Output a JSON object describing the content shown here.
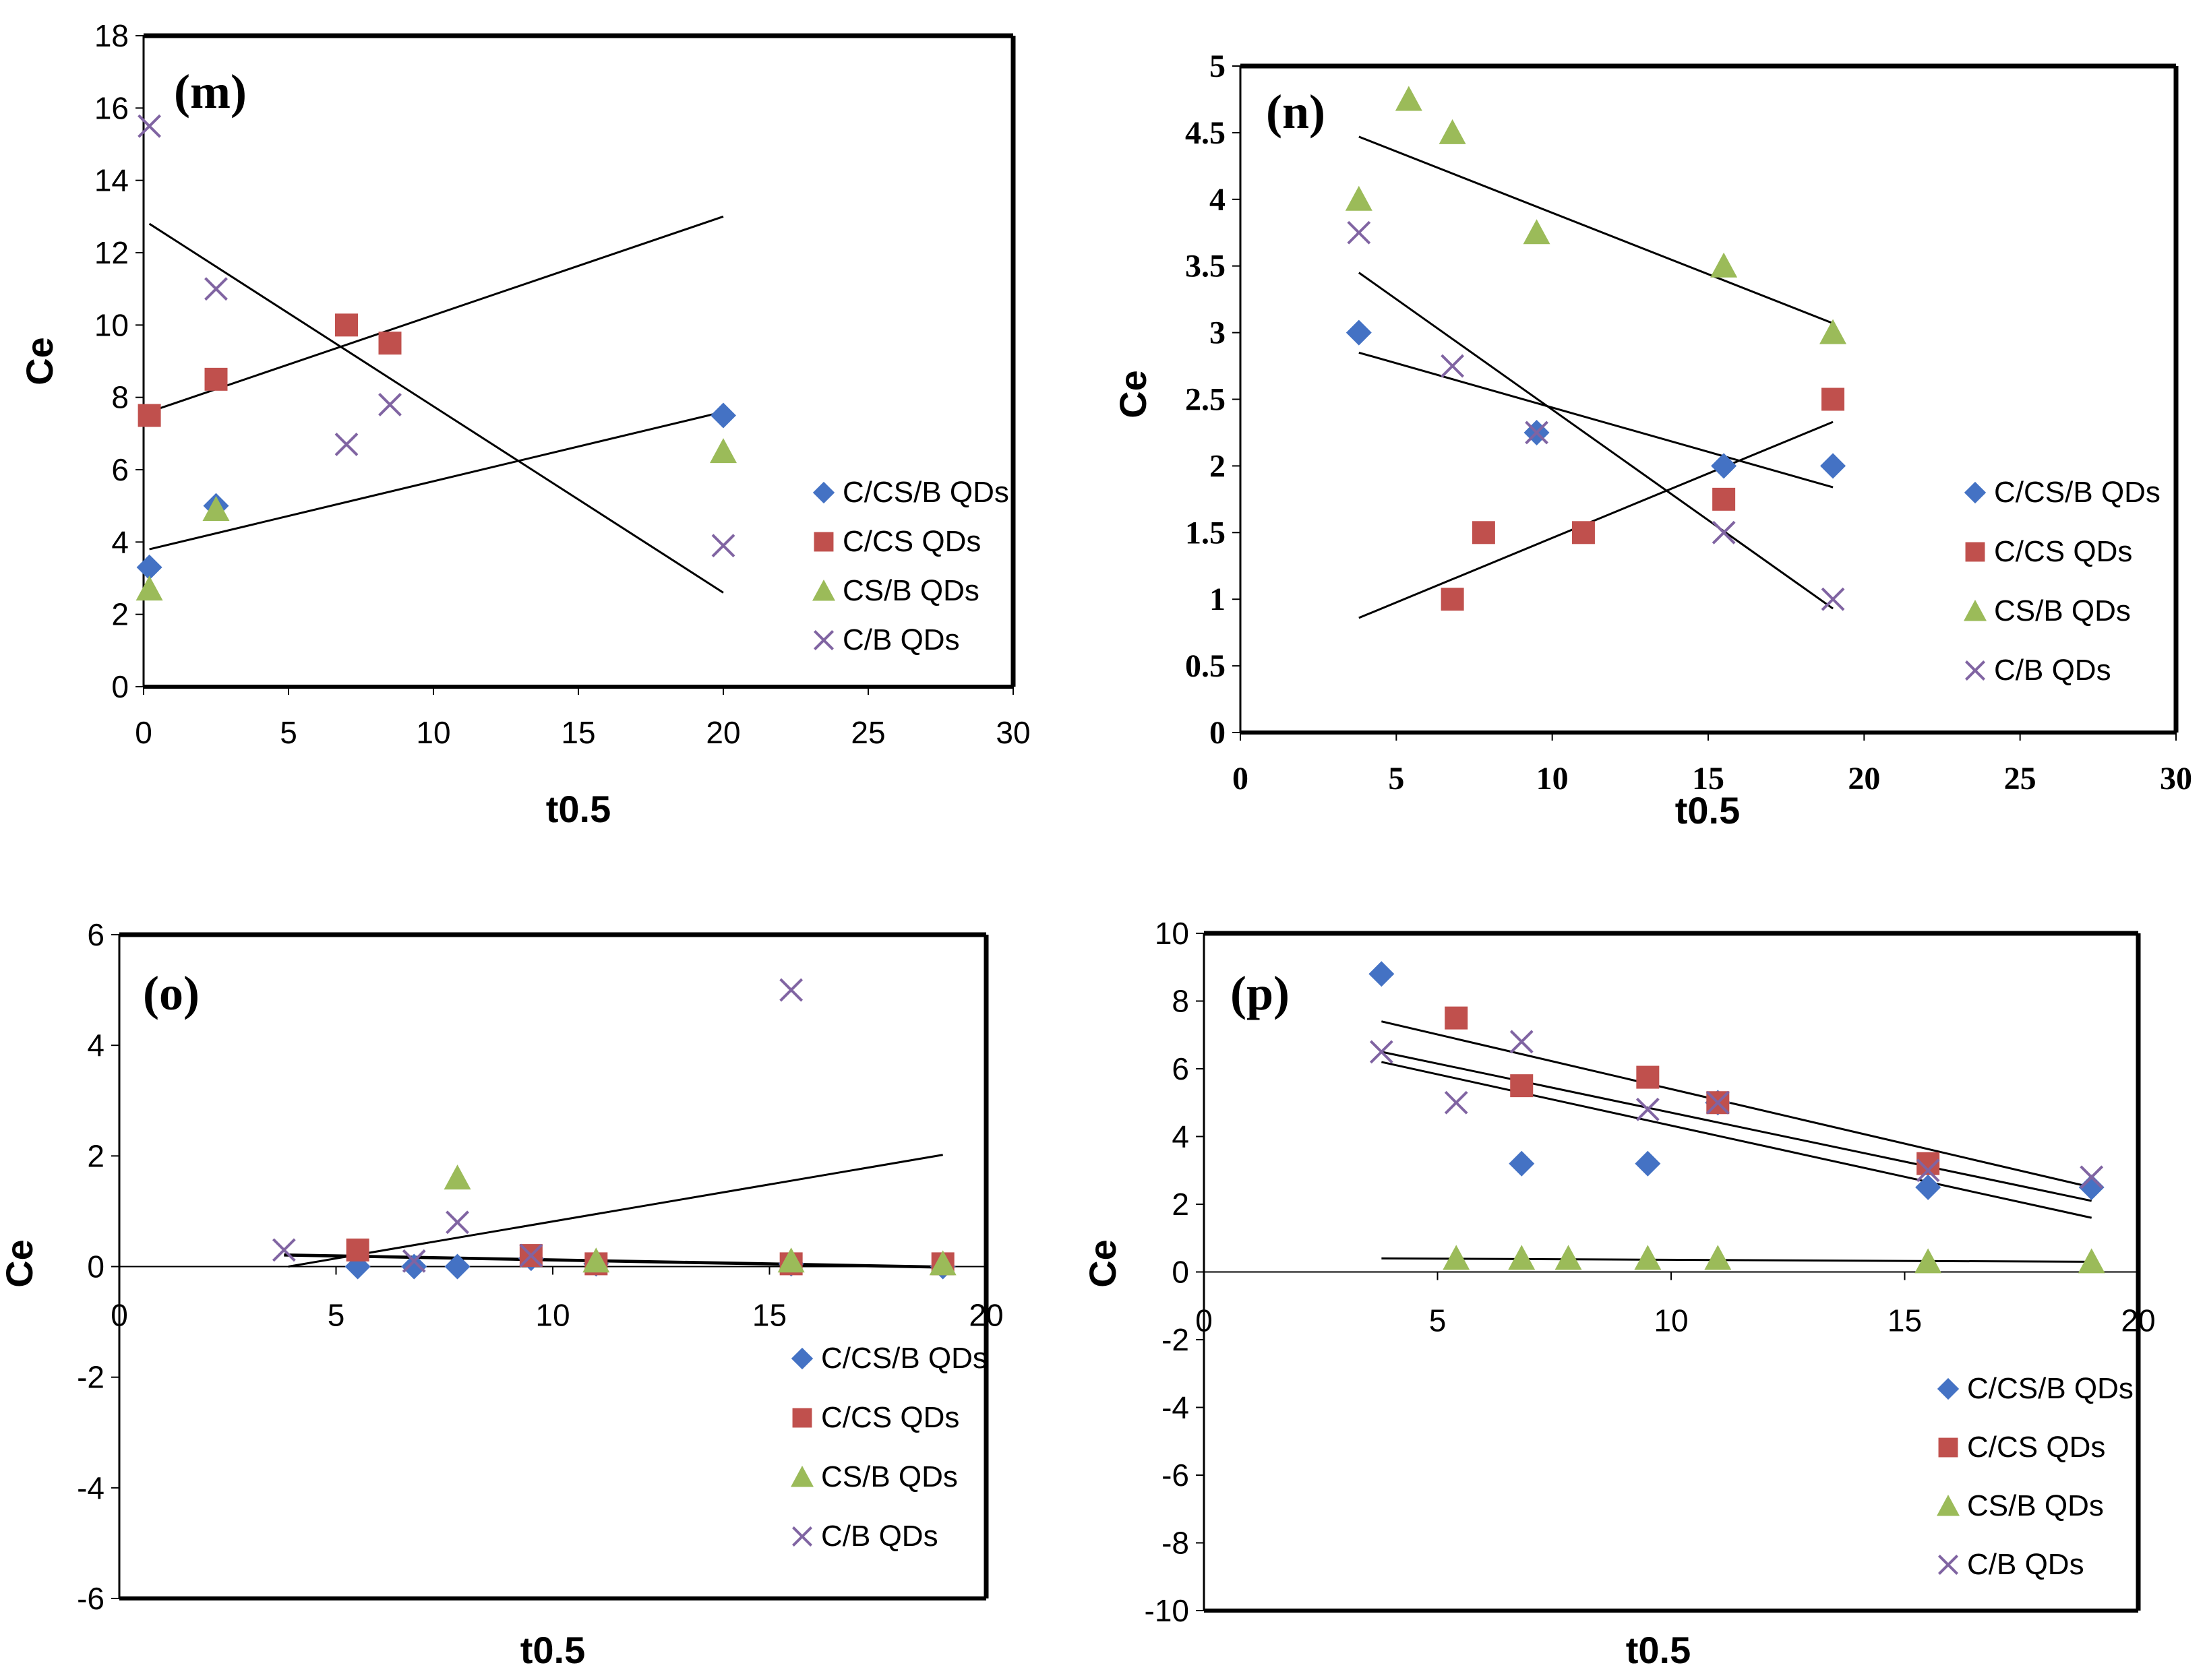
{
  "colors": {
    "C/CS/B QDs": "#4472C4",
    "C/CS QDs": "#C0504D",
    "CS/B QDs": "#9BBB59",
    "C/B QDs": "#8064A2"
  },
  "chart_data": [
    {
      "type": "scatter",
      "panel_label": "(m)",
      "xlabel": "t0.5",
      "ylabel": "Ce",
      "xlim": [
        0,
        30
      ],
      "ylim": [
        0,
        18
      ],
      "xticks": [
        "0",
        "5",
        "10",
        "15",
        "20",
        "25",
        "30"
      ],
      "yticks": [
        "0",
        "2",
        "4",
        "6",
        "8",
        "10",
        "12",
        "14",
        "16",
        "18"
      ],
      "legend": [
        "C/CS/B QDs",
        "C/CS QDs",
        "CS/B QDs",
        "C/B QDs"
      ],
      "series": [
        {
          "name": "C/CS/B QDs",
          "marker": "diamond",
          "points": [
            [
              0.2,
              3.3
            ],
            [
              2.5,
              5.0
            ],
            [
              20,
              7.5
            ]
          ]
        },
        {
          "name": "C/CS QDs",
          "marker": "square",
          "points": [
            [
              0.2,
              7.5
            ],
            [
              2.5,
              8.5
            ],
            [
              7,
              10.0
            ],
            [
              8.5,
              9.5
            ]
          ]
        },
        {
          "name": "CS/B QDs",
          "marker": "triangle",
          "points": [
            [
              0.2,
              2.7
            ],
            [
              2.5,
              4.9
            ],
            [
              20,
              6.5
            ]
          ]
        },
        {
          "name": "C/B QDs",
          "marker": "x",
          "points": [
            [
              0.2,
              15.5
            ],
            [
              2.5,
              11.0
            ],
            [
              7,
              6.7
            ],
            [
              8.5,
              7.8
            ],
            [
              20,
              3.9
            ]
          ]
        }
      ],
      "trendlines": [
        {
          "x": [
            0.2,
            20
          ],
          "y": [
            3.8,
            7.6
          ]
        },
        {
          "x": [
            0.2,
            20
          ],
          "y": [
            7.6,
            13.0
          ]
        },
        {
          "x": [
            0.2,
            20
          ],
          "y": [
            12.8,
            2.6
          ]
        }
      ]
    },
    {
      "type": "scatter",
      "panel_label": "(n)",
      "xlabel": "t0.5",
      "ylabel": "Ce",
      "xlim": [
        0,
        30
      ],
      "ylim": [
        0,
        5
      ],
      "xticks": [
        "0",
        "5",
        "10",
        "15",
        "20",
        "25",
        "30"
      ],
      "yticks": [
        "0",
        "0.5",
        "1",
        "1.5",
        "2",
        "2.5",
        "3",
        "3.5",
        "4",
        "4.5",
        "5"
      ],
      "legend": [
        "C/CS/B QDs",
        "C/CS QDs",
        "CS/B QDs",
        "C/B QDs"
      ],
      "series": [
        {
          "name": "C/CS/B QDs",
          "marker": "diamond",
          "points": [
            [
              3.8,
              3.0
            ],
            [
              9.5,
              2.25
            ],
            [
              15.5,
              2.0
            ],
            [
              19,
              2.0
            ]
          ]
        },
        {
          "name": "C/CS QDs",
          "marker": "square",
          "points": [
            [
              6.8,
              1.0
            ],
            [
              7.8,
              1.5
            ],
            [
              11,
              1.5
            ],
            [
              15.5,
              1.75
            ],
            [
              19,
              2.5
            ]
          ]
        },
        {
          "name": "CS/B QDs",
          "marker": "triangle",
          "points": [
            [
              3.8,
              4.0
            ],
            [
              5.4,
              4.75
            ],
            [
              6.8,
              4.5
            ],
            [
              9.5,
              3.75
            ],
            [
              15.5,
              3.5
            ],
            [
              19,
              3.0
            ]
          ]
        },
        {
          "name": "C/B QDs",
          "marker": "x",
          "points": [
            [
              3.8,
              3.75
            ],
            [
              6.8,
              2.75
            ],
            [
              9.5,
              2.25
            ],
            [
              15.5,
              1.5
            ],
            [
              19,
              1.0
            ]
          ]
        }
      ],
      "trendlines": [
        {
          "x": [
            3.8,
            19
          ],
          "y": [
            4.47,
            3.07
          ]
        },
        {
          "x": [
            3.8,
            19
          ],
          "y": [
            2.85,
            1.84
          ]
        },
        {
          "x": [
            3.8,
            19
          ],
          "y": [
            3.45,
            0.93
          ]
        },
        {
          "x": [
            3.8,
            19
          ],
          "y": [
            0.86,
            2.33
          ]
        }
      ]
    },
    {
      "type": "scatter",
      "panel_label": "(o)",
      "xlabel": "t0.5",
      "ylabel": "Ce",
      "xlim": [
        0,
        20
      ],
      "ylim": [
        -6,
        6
      ],
      "xticks": [
        "0",
        "5",
        "10",
        "15",
        "20"
      ],
      "yticks": [
        "-6",
        "-4",
        "-2",
        "0",
        "2",
        "4",
        "6"
      ],
      "legend": [
        "C/CS/B QDs",
        "C/CS QDs",
        "CS/B QDs",
        "C/B QDs"
      ],
      "series": [
        {
          "name": "C/CS/B QDs",
          "marker": "diamond",
          "points": [
            [
              5.5,
              0.0
            ],
            [
              6.8,
              0.0
            ],
            [
              7.8,
              0.0
            ],
            [
              9.5,
              0.15
            ],
            [
              11,
              0.05
            ],
            [
              15.5,
              0.05
            ],
            [
              19,
              0.0
            ]
          ]
        },
        {
          "name": "C/CS QDs",
          "marker": "square",
          "points": [
            [
              5.5,
              0.3
            ],
            [
              9.5,
              0.2
            ],
            [
              11,
              0.05
            ],
            [
              15.5,
              0.05
            ],
            [
              19,
              0.05
            ]
          ]
        },
        {
          "name": "CS/B QDs",
          "marker": "triangle",
          "points": [
            [
              7.8,
              1.6
            ],
            [
              11,
              0.1
            ],
            [
              15.5,
              0.1
            ],
            [
              19,
              0.05
            ]
          ]
        },
        {
          "name": "C/B QDs",
          "marker": "x",
          "points": [
            [
              3.8,
              0.3
            ],
            [
              6.8,
              0.1
            ],
            [
              7.8,
              0.8
            ],
            [
              9.5,
              0.2
            ],
            [
              15.5,
              5.0
            ]
          ]
        }
      ],
      "trendlines": [
        {
          "x": [
            3.8,
            19
          ],
          "y": [
            0.22,
            0.0
          ]
        },
        {
          "x": [
            3.8,
            19
          ],
          "y": [
            0.2,
            -0.02
          ]
        },
        {
          "x": [
            3.9,
            19
          ],
          "y": [
            0.0,
            2.02
          ]
        }
      ]
    },
    {
      "type": "scatter",
      "panel_label": "(p)",
      "xlabel": "t0.5",
      "ylabel": "Ce",
      "xlim": [
        0,
        20
      ],
      "ylim": [
        -10,
        10
      ],
      "xticks": [
        "0",
        "5",
        "10",
        "15",
        "20"
      ],
      "yticks": [
        "-10",
        "-8",
        "-6",
        "-4",
        "-2",
        "0",
        "2",
        "4",
        "6",
        "8",
        "10"
      ],
      "legend": [
        "C/CS/B QDs",
        "C/CS QDs",
        "CS/B QDs",
        "C/B QDs"
      ],
      "series": [
        {
          "name": "C/CS/B QDs",
          "marker": "diamond",
          "points": [
            [
              3.8,
              8.8
            ],
            [
              6.8,
              3.2
            ],
            [
              9.5,
              3.2
            ],
            [
              11,
              5.0
            ],
            [
              15.5,
              2.5
            ],
            [
              19,
              2.5
            ]
          ]
        },
        {
          "name": "C/CS QDs",
          "marker": "square",
          "points": [
            [
              5.4,
              7.5
            ],
            [
              6.8,
              5.5
            ],
            [
              9.5,
              5.75
            ],
            [
              11,
              5.0
            ],
            [
              15.5,
              3.2
            ]
          ]
        },
        {
          "name": "CS/B QDs",
          "marker": "triangle",
          "points": [
            [
              5.4,
              0.4
            ],
            [
              6.8,
              0.4
            ],
            [
              7.8,
              0.4
            ],
            [
              9.5,
              0.4
            ],
            [
              11,
              0.4
            ],
            [
              15.5,
              0.3
            ],
            [
              19,
              0.3
            ]
          ]
        },
        {
          "name": "C/B QDs",
          "marker": "x",
          "points": [
            [
              3.8,
              6.5
            ],
            [
              5.4,
              5.0
            ],
            [
              6.8,
              6.8
            ],
            [
              9.5,
              4.8
            ],
            [
              11,
              5.0
            ],
            [
              15.5,
              3.0
            ],
            [
              19,
              2.8
            ]
          ]
        }
      ],
      "trendlines": [
        {
          "x": [
            3.8,
            19
          ],
          "y": [
            7.4,
            2.5
          ]
        },
        {
          "x": [
            3.8,
            19
          ],
          "y": [
            6.5,
            2.1
          ]
        },
        {
          "x": [
            3.8,
            19
          ],
          "y": [
            6.2,
            1.6
          ]
        },
        {
          "x": [
            3.8,
            19
          ],
          "y": [
            0.4,
            0.3
          ]
        }
      ]
    }
  ]
}
